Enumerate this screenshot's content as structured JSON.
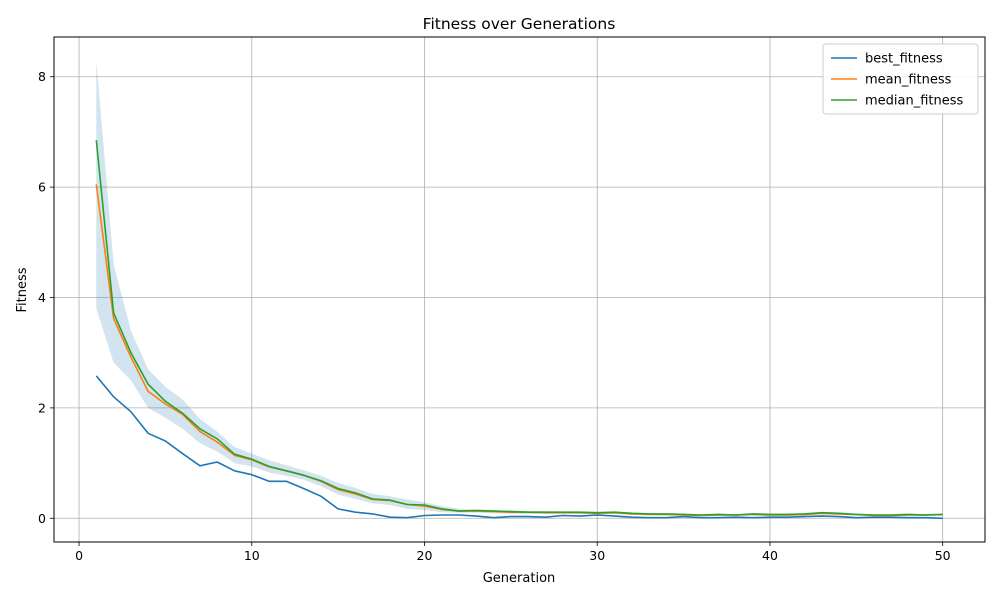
{
  "chart_data": {
    "type": "line",
    "title": "Fitness over Generations",
    "xlabel": "Generation",
    "ylabel": "Fitness",
    "xlim": [
      -1.45,
      52.45
    ],
    "ylim": [
      -0.43,
      8.72
    ],
    "xticks": [
      0,
      10,
      20,
      30,
      40,
      50
    ],
    "yticks": [
      0,
      2,
      4,
      6,
      8
    ],
    "grid": true,
    "legend_position": "top-right",
    "x": [
      1,
      2,
      3,
      4,
      5,
      6,
      7,
      8,
      9,
      10,
      11,
      12,
      13,
      14,
      15,
      16,
      17,
      18,
      19,
      20,
      21,
      22,
      23,
      24,
      25,
      26,
      27,
      28,
      29,
      30,
      31,
      32,
      33,
      34,
      35,
      36,
      37,
      38,
      39,
      40,
      41,
      42,
      43,
      44,
      45,
      46,
      47,
      48,
      49,
      50
    ],
    "series": [
      {
        "name": "best_fitness",
        "color": "#1f77b4",
        "values": [
          2.58,
          2.2,
          1.93,
          1.54,
          1.4,
          1.17,
          0.95,
          1.02,
          0.86,
          0.79,
          0.67,
          0.67,
          0.54,
          0.4,
          0.17,
          0.11,
          0.08,
          0.02,
          0.01,
          0.05,
          0.06,
          0.06,
          0.04,
          0.01,
          0.03,
          0.03,
          0.02,
          0.05,
          0.04,
          0.06,
          0.04,
          0.02,
          0.01,
          0.01,
          0.03,
          0.01,
          0.01,
          0.02,
          0.01,
          0.02,
          0.02,
          0.03,
          0.04,
          0.03,
          0.01,
          0.02,
          0.02,
          0.01,
          0.01,
          0.0
        ]
      },
      {
        "name": "mean_fitness",
        "color": "#ff7f0e",
        "values": [
          6.05,
          3.62,
          2.92,
          2.3,
          2.07,
          1.88,
          1.57,
          1.38,
          1.14,
          1.06,
          0.93,
          0.86,
          0.78,
          0.67,
          0.52,
          0.44,
          0.34,
          0.32,
          0.25,
          0.22,
          0.16,
          0.13,
          0.13,
          0.12,
          0.11,
          0.11,
          0.1,
          0.1,
          0.1,
          0.09,
          0.1,
          0.08,
          0.07,
          0.07,
          0.06,
          0.05,
          0.06,
          0.06,
          0.07,
          0.06,
          0.06,
          0.07,
          0.09,
          0.08,
          0.07,
          0.05,
          0.05,
          0.06,
          0.06,
          0.07
        ]
      },
      {
        "name": "median_fitness",
        "color": "#2ca02c",
        "values": [
          6.85,
          3.72,
          3.0,
          2.43,
          2.12,
          1.9,
          1.62,
          1.44,
          1.16,
          1.07,
          0.94,
          0.86,
          0.78,
          0.68,
          0.54,
          0.46,
          0.35,
          0.33,
          0.25,
          0.24,
          0.17,
          0.13,
          0.14,
          0.13,
          0.12,
          0.11,
          0.11,
          0.11,
          0.11,
          0.1,
          0.11,
          0.09,
          0.08,
          0.08,
          0.07,
          0.06,
          0.07,
          0.06,
          0.08,
          0.07,
          0.07,
          0.08,
          0.1,
          0.09,
          0.07,
          0.06,
          0.06,
          0.07,
          0.06,
          0.07
        ]
      }
    ],
    "band": {
      "color": "#1f77b4",
      "opacity": 0.2,
      "upper": [
        8.3,
        4.6,
        3.4,
        2.7,
        2.38,
        2.15,
        1.8,
        1.57,
        1.29,
        1.17,
        1.05,
        0.96,
        0.87,
        0.77,
        0.64,
        0.55,
        0.44,
        0.4,
        0.34,
        0.29,
        0.22,
        0.17,
        0.16,
        0.15,
        0.14,
        0.13,
        0.13,
        0.12,
        0.12,
        0.11,
        0.12,
        0.1,
        0.09,
        0.09,
        0.08,
        0.07,
        0.08,
        0.08,
        0.08,
        0.08,
        0.08,
        0.09,
        0.11,
        0.1,
        0.08,
        0.07,
        0.07,
        0.08,
        0.08,
        0.08
      ],
      "lower": [
        3.8,
        2.82,
        2.5,
        2.0,
        1.82,
        1.62,
        1.36,
        1.21,
        1.0,
        0.94,
        0.83,
        0.77,
        0.7,
        0.58,
        0.43,
        0.35,
        0.27,
        0.24,
        0.17,
        0.15,
        0.11,
        0.1,
        0.1,
        0.09,
        0.08,
        0.08,
        0.08,
        0.08,
        0.08,
        0.07,
        0.08,
        0.06,
        0.06,
        0.05,
        0.05,
        0.04,
        0.04,
        0.04,
        0.05,
        0.04,
        0.04,
        0.05,
        0.07,
        0.06,
        0.05,
        0.04,
        0.04,
        0.04,
        0.04,
        0.05
      ]
    }
  }
}
